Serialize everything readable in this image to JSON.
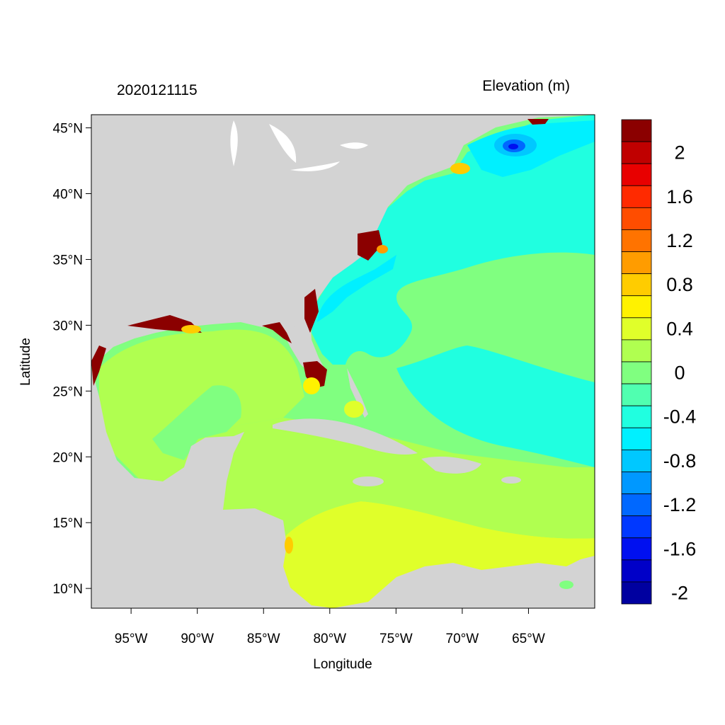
{
  "header": {
    "left_title": "2020121115",
    "right_title": "Elevation (m)"
  },
  "axes": {
    "xlabel": "Longitude",
    "ylabel": "Latitude",
    "lon_range": [
      -98,
      -60
    ],
    "lat_range": [
      8.5,
      46
    ],
    "x_ticks": [
      {
        "value": -95,
        "label": "95°W"
      },
      {
        "value": -90,
        "label": "90°W"
      },
      {
        "value": -85,
        "label": "85°W"
      },
      {
        "value": -80,
        "label": "80°W"
      },
      {
        "value": -75,
        "label": "75°W"
      },
      {
        "value": -70,
        "label": "70°W"
      },
      {
        "value": -65,
        "label": "65°W"
      }
    ],
    "y_ticks": [
      {
        "value": 45,
        "label": "45°N"
      },
      {
        "value": 40,
        "label": "40°N"
      },
      {
        "value": 35,
        "label": "35°N"
      },
      {
        "value": 30,
        "label": "30°N"
      },
      {
        "value": 25,
        "label": "25°N"
      },
      {
        "value": 20,
        "label": "20°N"
      },
      {
        "value": 15,
        "label": "15°N"
      },
      {
        "value": 10,
        "label": "10°N"
      }
    ]
  },
  "colorbar": {
    "levels_top_to_bottom": [
      "#8b0000",
      "#c00000",
      "#e80000",
      "#ff2a00",
      "#ff4d00",
      "#ff7300",
      "#ff9c00",
      "#ffcc00",
      "#fff200",
      "#e0ff2a",
      "#b0ff50",
      "#80ff80",
      "#50ffb0",
      "#20ffe0",
      "#00f0ff",
      "#00c8ff",
      "#0098ff",
      "#0068ff",
      "#0038ff",
      "#0010f0",
      "#0000c8",
      "#0000a0"
    ],
    "labels": [
      {
        "text": "2",
        "level_index": 1
      },
      {
        "text": "1.6",
        "level_index": 3
      },
      {
        "text": "1.2",
        "level_index": 5
      },
      {
        "text": "0.8",
        "level_index": 7
      },
      {
        "text": "0.4",
        "level_index": 9
      },
      {
        "text": "0",
        "level_index": 11
      },
      {
        "text": "-0.4",
        "level_index": 13
      },
      {
        "text": "-0.8",
        "level_index": 15
      },
      {
        "text": "-1.2",
        "level_index": 17
      },
      {
        "text": "-1.6",
        "level_index": 19
      },
      {
        "text": "-2",
        "level_index": 21
      }
    ]
  },
  "colors": {
    "land": "#d3d3d3",
    "ocean_zero": "#80ff80",
    "ocean_low": "#20ffe0",
    "ocean_lower": "#00f0ff",
    "ocean_high": "#e0ff2a",
    "surge": "#8b0000"
  }
}
